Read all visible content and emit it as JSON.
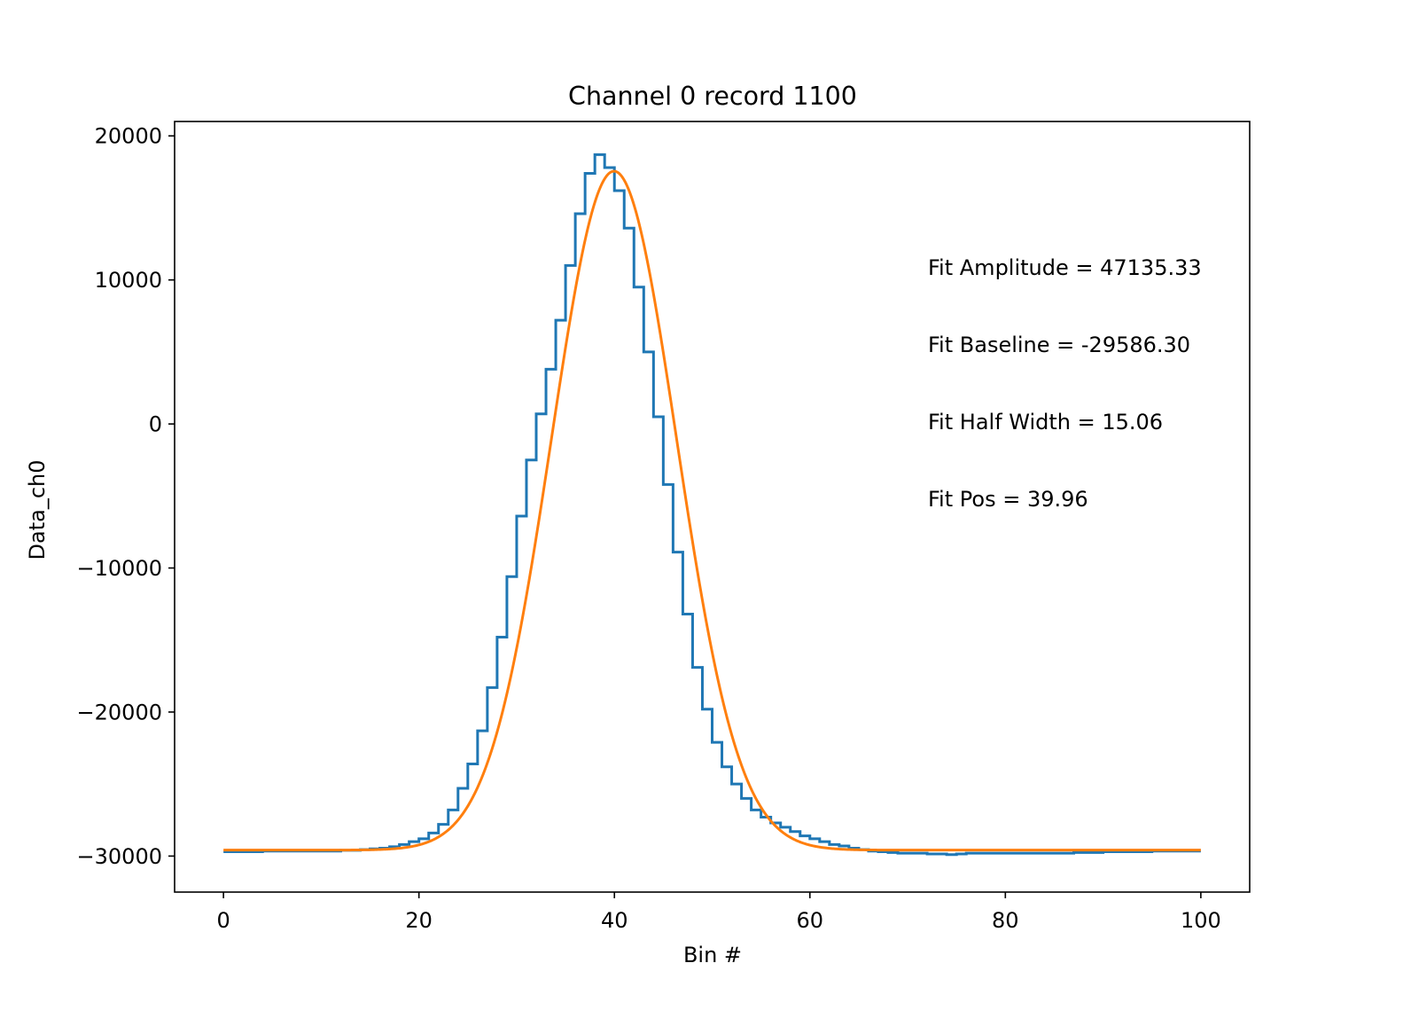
{
  "chart_data": {
    "type": "line",
    "title": "Channel 0 record 1100",
    "xlabel": "Bin #",
    "ylabel": "Data_ch0",
    "xlim": [
      -5,
      105
    ],
    "ylim": [
      -32500,
      21000
    ],
    "xticks": [
      0,
      20,
      40,
      60,
      80,
      100
    ],
    "xtick_labels": [
      "0",
      "20",
      "40",
      "60",
      "80",
      "100"
    ],
    "yticks": [
      20000,
      10000,
      0,
      -10000,
      -20000,
      -30000
    ],
    "ytick_labels": [
      "20000",
      "10000",
      "0",
      "−10000",
      "−20000",
      "−30000"
    ],
    "grid": false,
    "series": [
      {
        "style": "step",
        "color": "#1f77b4",
        "x": [
          0,
          1,
          2,
          3,
          4,
          5,
          6,
          7,
          8,
          9,
          10,
          11,
          12,
          13,
          14,
          15,
          16,
          17,
          18,
          19,
          20,
          21,
          22,
          23,
          24,
          25,
          26,
          27,
          28,
          29,
          30,
          31,
          32,
          33,
          34,
          35,
          36,
          37,
          38,
          39,
          40,
          41,
          42,
          43,
          44,
          45,
          46,
          47,
          48,
          49,
          50,
          51,
          52,
          53,
          54,
          55,
          56,
          57,
          58,
          59,
          60,
          61,
          62,
          63,
          64,
          65,
          66,
          67,
          68,
          69,
          70,
          71,
          72,
          73,
          74,
          75,
          76,
          77,
          78,
          79,
          80,
          81,
          82,
          83,
          84,
          85,
          86,
          87,
          88,
          89,
          90,
          91,
          92,
          93,
          94,
          95,
          96,
          97,
          98,
          99,
          100
        ],
        "y": [
          -29700,
          -29700,
          -29700,
          -29700,
          -29700,
          -29650,
          -29650,
          -29650,
          -29650,
          -29650,
          -29650,
          -29650,
          -29650,
          -29600,
          -29600,
          -29550,
          -29500,
          -29450,
          -29350,
          -29200,
          -29000,
          -28800,
          -28400,
          -27800,
          -26800,
          -25300,
          -23600,
          -21300,
          -18300,
          -14800,
          -10600,
          -6400,
          -2500,
          700,
          3800,
          7200,
          11000,
          14600,
          17400,
          18700,
          17800,
          16200,
          13600,
          9500,
          5000,
          500,
          -4200,
          -8900,
          -13200,
          -16900,
          -19800,
          -22100,
          -23800,
          -25000,
          -26000,
          -26800,
          -27300,
          -27700,
          -28000,
          -28300,
          -28600,
          -28800,
          -29000,
          -29200,
          -29300,
          -29450,
          -29550,
          -29650,
          -29700,
          -29750,
          -29800,
          -29800,
          -29800,
          -29850,
          -29850,
          -29900,
          -29850,
          -29800,
          -29800,
          -29800,
          -29800,
          -29800,
          -29800,
          -29800,
          -29800,
          -29800,
          -29800,
          -29800,
          -29750,
          -29750,
          -29750,
          -29700,
          -29700,
          -29700,
          -29700,
          -29700,
          -29650,
          -29650,
          -29650,
          -29650,
          -29650
        ]
      },
      {
        "style": "line",
        "color": "#ff7f0e",
        "function": "gaussian",
        "amplitude": 47135.33,
        "baseline": -29586.3,
        "position": 39.96,
        "half_width": 15.06
      }
    ],
    "annotations": [
      "Fit Amplitude = 47135.33",
      "Fit Baseline = -29586.30",
      "Fit Half Width = 15.06",
      "Fit Pos = 39.96"
    ]
  }
}
